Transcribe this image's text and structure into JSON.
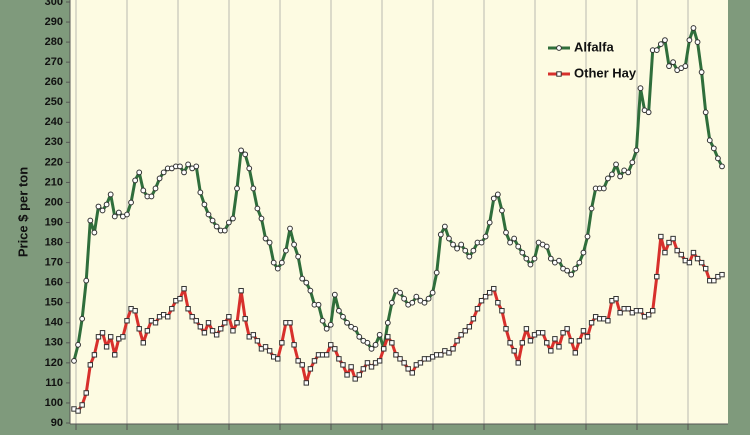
{
  "chart_data": {
    "type": "line",
    "y_label": "Price $ per ton",
    "ylim": [
      90,
      300
    ],
    "yticks": [
      90,
      100,
      110,
      120,
      130,
      140,
      150,
      160,
      170,
      180,
      190,
      200,
      210,
      220,
      230,
      240,
      250,
      260,
      270,
      280,
      290,
      300
    ],
    "grid": "vertical",
    "legend": "upper right",
    "series": [
      {
        "name": "Alfalfa",
        "color": "#2f6e3b",
        "marker": "circle",
        "values": [
          121,
          129,
          142,
          161,
          191,
          185,
          198,
          196,
          199,
          204,
          193,
          195,
          193,
          194,
          200,
          211,
          215,
          206,
          203,
          203,
          207,
          212,
          215,
          217,
          217,
          218,
          218,
          215,
          219,
          217,
          218,
          205,
          199,
          194,
          191,
          188,
          186,
          186,
          190,
          192,
          207,
          226,
          224,
          217,
          207,
          197,
          192,
          182,
          180,
          170,
          167,
          170,
          176,
          187,
          179,
          173,
          162,
          160,
          156,
          149,
          149,
          141,
          137,
          139,
          154,
          146,
          143,
          140,
          138,
          137,
          133,
          131,
          130,
          127,
          129,
          134,
          127,
          140,
          150,
          156,
          155,
          152,
          149,
          150,
          153,
          151,
          150,
          152,
          155,
          165,
          184,
          188,
          182,
          179,
          177,
          179,
          176,
          173,
          176,
          180,
          180,
          183,
          190,
          202,
          204,
          196,
          185,
          180,
          182,
          178,
          175,
          172,
          169,
          172,
          180,
          179,
          178,
          172,
          170,
          171,
          167,
          166,
          164,
          167,
          170,
          175,
          183,
          197,
          207,
          207,
          207,
          212,
          214,
          219,
          213,
          216,
          215,
          220,
          226,
          257,
          246,
          245,
          276,
          276,
          279,
          281,
          268,
          270,
          266,
          267,
          268,
          281,
          287,
          280,
          265,
          245,
          231,
          227,
          222,
          218
        ]
      },
      {
        "name": "Other Hay",
        "color": "#d7302c",
        "marker": "square",
        "values": [
          97,
          96,
          99,
          105,
          119,
          124,
          133,
          135,
          128,
          133,
          124,
          132,
          133,
          141,
          147,
          146,
          137,
          130,
          136,
          141,
          140,
          143,
          144,
          143,
          147,
          151,
          152,
          157,
          147,
          143,
          141,
          138,
          135,
          140,
          136,
          134,
          137,
          140,
          143,
          136,
          140,
          156,
          142,
          133,
          134,
          131,
          127,
          128,
          126,
          123,
          122,
          130,
          140,
          140,
          129,
          121,
          119,
          110,
          117,
          121,
          124,
          124,
          124,
          129,
          127,
          122,
          119,
          114,
          118,
          112,
          114,
          117,
          120,
          118,
          120,
          121,
          127,
          133,
          130,
          124,
          122,
          120,
          117,
          115,
          119,
          120,
          122,
          122,
          123,
          124,
          124,
          126,
          125,
          127,
          131,
          134,
          136,
          138,
          142,
          147,
          151,
          153,
          155,
          157,
          150,
          146,
          137,
          130,
          126,
          120,
          130,
          137,
          131,
          134,
          135,
          135,
          130,
          126,
          132,
          128,
          135,
          137,
          131,
          125,
          131,
          136,
          133,
          140,
          143,
          142,
          142,
          141,
          151,
          152,
          145,
          147,
          147,
          145,
          146,
          146,
          143,
          144,
          146,
          163,
          183,
          175,
          180,
          182,
          176,
          174,
          171,
          170,
          175,
          172,
          170,
          167,
          161,
          161,
          163,
          164
        ]
      }
    ]
  }
}
